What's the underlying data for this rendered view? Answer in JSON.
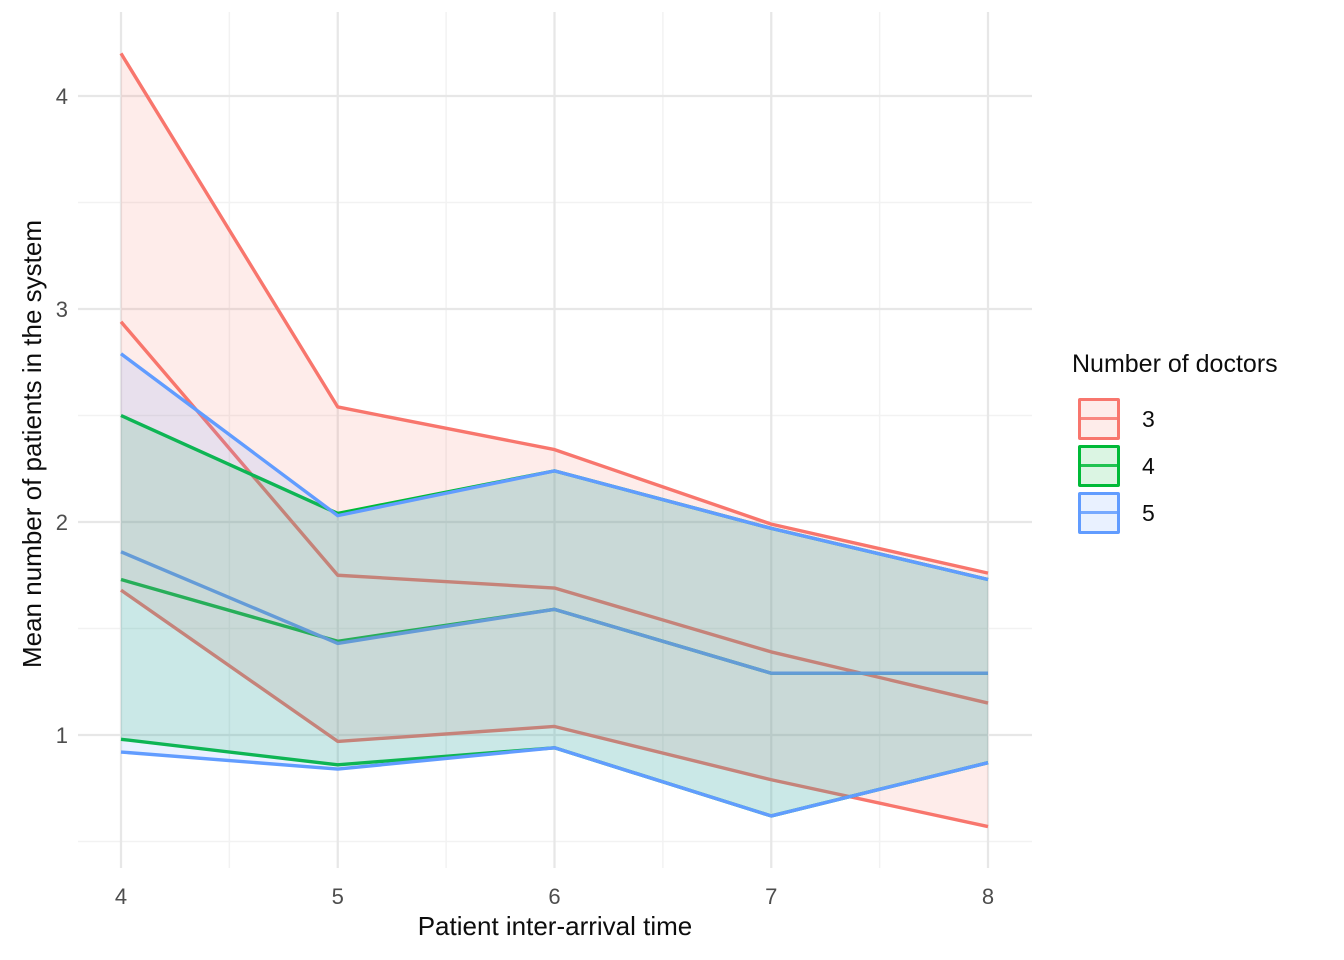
{
  "axes": {
    "x": {
      "title": "Patient inter-arrival time",
      "ticks": [
        "4",
        "5",
        "6",
        "7",
        "8"
      ],
      "tick_values": [
        4,
        5,
        6,
        7,
        8
      ],
      "minor_values": [
        4.5,
        5.5,
        6.5,
        7.5
      ],
      "range": [
        3.8,
        8.2
      ]
    },
    "y": {
      "title": "Mean number of patients in the system",
      "ticks": [
        "1",
        "2",
        "3",
        "4"
      ],
      "tick_values": [
        1,
        2,
        3,
        4
      ],
      "minor_values": [
        0.5,
        1.5,
        2.5,
        3.5
      ],
      "range": [
        0.37,
        4.4
      ]
    }
  },
  "legend": {
    "title": "Number of doctors",
    "entries": [
      {
        "label": "3",
        "color": "#F8766D"
      },
      {
        "label": "4",
        "color": "#00BA38"
      },
      {
        "label": "5",
        "color": "#619CFF"
      }
    ]
  },
  "style": {
    "grid_major_color": "#E7E7E7",
    "grid_minor_color": "#F2F2F2",
    "tick_label_color": "#4D4D4D",
    "ribbon_fill_opacity": 0.14
  },
  "chart_data": {
    "type": "line",
    "subtype": "lines-with-ribbons",
    "title": "",
    "xlabel": "Patient inter-arrival time",
    "ylabel": "Mean number of patients in the system",
    "legend_title": "Number of doctors",
    "legend_position": "right",
    "grid": "on",
    "xlim": [
      3.8,
      8.2
    ],
    "ylim": [
      0.37,
      4.4
    ],
    "x": [
      4,
      5,
      6,
      7,
      8
    ],
    "series": [
      {
        "name": "3",
        "color": "#F8766D",
        "mean": [
          2.94,
          1.75,
          1.69,
          1.39,
          1.15
        ],
        "upper": [
          4.2,
          2.54,
          2.34,
          1.99,
          1.76
        ],
        "lower": [
          1.68,
          0.97,
          1.04,
          0.79,
          0.57
        ]
      },
      {
        "name": "4",
        "color": "#00BA38",
        "mean": [
          1.73,
          1.44,
          1.59,
          1.29,
          1.29
        ],
        "upper": [
          2.5,
          2.04,
          2.24,
          1.97,
          1.73
        ],
        "lower": [
          0.98,
          0.86,
          0.94,
          0.62,
          0.87
        ]
      },
      {
        "name": "5",
        "color": "#619CFF",
        "mean": [
          1.86,
          1.43,
          1.59,
          1.29,
          1.29
        ],
        "upper": [
          2.79,
          2.03,
          2.24,
          1.97,
          1.73
        ],
        "lower": [
          0.92,
          0.84,
          0.94,
          0.62,
          0.87
        ]
      }
    ]
  }
}
